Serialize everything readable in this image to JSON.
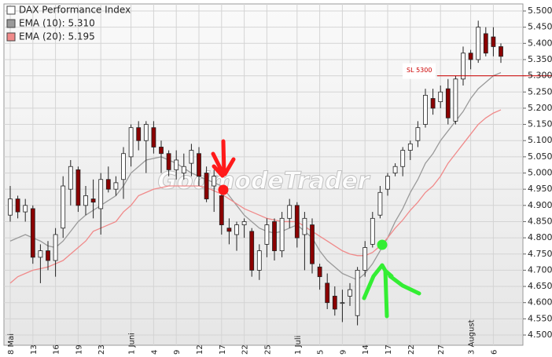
{
  "chart_data": {
    "type": "candlestick",
    "watermark": "GodmodeTrader",
    "categories": [
      "8 Mai",
      null,
      null,
      "13",
      null,
      null,
      "16",
      null,
      null,
      "19",
      null,
      null,
      "23",
      null,
      null,
      null,
      "1 Juni",
      null,
      null,
      "4",
      null,
      null,
      "9",
      null,
      null,
      "12",
      null,
      null,
      "17",
      null,
      null,
      "22",
      null,
      null,
      "25",
      null,
      null,
      null,
      "1 Juli",
      null,
      null,
      "5",
      null,
      null,
      "9",
      null,
      null,
      "14",
      null,
      null,
      "17",
      null,
      null,
      "22",
      null,
      null,
      null,
      "27",
      null,
      null,
      null,
      "3 August",
      null,
      null,
      "6",
      null
    ],
    "up_color": "#ffffff",
    "down_color": "#8b0000",
    "series": [
      {
        "name": "DAX Performance Index",
        "color": "#ffffff",
        "open": [
          4870,
          4920,
          4880,
          4890,
          4740,
          4760,
          4730,
          4830,
          4950,
          5010,
          4900,
          4920,
          4890,
          4980,
          4950,
          4980,
          5050,
          5140,
          5100,
          5140,
          5080,
          5060,
          5010,
          5000,
          5030,
          5060,
          5000,
          4960,
          4930,
          4830,
          4810,
          4840,
          4820,
          4700,
          4780,
          4850,
          4760,
          4860,
          4900,
          4810,
          4840,
          4710,
          4660,
          4620,
          4600,
          4620,
          4560,
          4700,
          4780,
          4870,
          4950,
          5000,
          5020,
          5070,
          5100,
          5150,
          5230,
          5220,
          5260,
          5160,
          5290,
          5370,
          5350,
          5430,
          5420,
          5390
        ],
        "high": [
          4960,
          4930,
          4920,
          4900,
          4780,
          4790,
          4830,
          4990,
          5040,
          5020,
          4960,
          4980,
          5000,
          5020,
          4990,
          5080,
          5150,
          5160,
          5160,
          5160,
          5100,
          5070,
          5070,
          5060,
          5090,
          5080,
          5020,
          5010,
          4960,
          4860,
          4850,
          4860,
          4830,
          4780,
          4860,
          4860,
          4880,
          4920,
          4910,
          4880,
          4860,
          4720,
          4690,
          4650,
          4640,
          4660,
          4710,
          4790,
          4880,
          4960,
          5000,
          5030,
          5080,
          5100,
          5160,
          5260,
          5260,
          5270,
          5290,
          5300,
          5390,
          5380,
          5470,
          5450,
          5450,
          5400
        ],
        "low": [
          4850,
          4860,
          4850,
          4720,
          4660,
          4700,
          4680,
          4800,
          4900,
          4880,
          4870,
          4860,
          4810,
          4940,
          4930,
          4920,
          5020,
          5070,
          5000,
          5060,
          5000,
          4990,
          4980,
          4980,
          4990,
          4960,
          4910,
          4880,
          4810,
          4780,
          4760,
          4800,
          4680,
          4670,
          4740,
          4730,
          4740,
          4830,
          4770,
          4700,
          4690,
          4640,
          4580,
          4560,
          4540,
          4590,
          4530,
          4680,
          4770,
          4860,
          4930,
          4990,
          4990,
          5040,
          5080,
          5140,
          5180,
          5200,
          5150,
          5150,
          5270,
          5320,
          5340,
          5360,
          5360,
          5340
        ],
        "close": [
          4920,
          4880,
          4900,
          4740,
          4760,
          4730,
          4810,
          4960,
          5020,
          4900,
          4930,
          4910,
          4980,
          4950,
          4970,
          5060,
          5140,
          5100,
          5150,
          5080,
          5060,
          5010,
          5040,
          5020,
          5070,
          4990,
          4920,
          4990,
          4840,
          4820,
          4840,
          4850,
          4700,
          4760,
          4840,
          4760,
          4860,
          4900,
          4800,
          4860,
          4720,
          4680,
          4600,
          4580,
          4600,
          4640,
          4700,
          4770,
          4860,
          4940,
          4990,
          5020,
          5070,
          5090,
          5140,
          5240,
          5200,
          5250,
          5170,
          5290,
          5370,
          5350,
          5450,
          5370,
          5390,
          5360
        ]
      },
      {
        "name": "EMA (10): 5.310",
        "color": "#9a9a9a",
        "values": [
          4790,
          4800,
          4810,
          4800,
          4790,
          4775,
          4770,
          4790,
          4820,
          4850,
          4870,
          4885,
          4900,
          4915,
          4930,
          4960,
          5000,
          5020,
          5040,
          5045,
          5050,
          5040,
          5030,
          5015,
          5000,
          4990,
          4980,
          4970,
          4960,
          4930,
          4900,
          4870,
          4850,
          4830,
          4820,
          4815,
          4820,
          4830,
          4840,
          4820,
          4800,
          4760,
          4730,
          4710,
          4690,
          4680,
          4670,
          4690,
          4720,
          4760,
          4800,
          4850,
          4890,
          4940,
          4980,
          5030,
          5060,
          5100,
          5130,
          5160,
          5190,
          5230,
          5260,
          5280,
          5300,
          5310
        ]
      },
      {
        "name": "EMA (20): 5.195",
        "color": "#f08a8a",
        "values": [
          4660,
          4680,
          4690,
          4700,
          4705,
          4710,
          4720,
          4730,
          4750,
          4770,
          4790,
          4820,
          4830,
          4840,
          4850,
          4880,
          4900,
          4930,
          4940,
          4950,
          4955,
          4960,
          4960,
          4960,
          4960,
          4960,
          4955,
          4945,
          4935,
          4920,
          4905,
          4890,
          4880,
          4870,
          4860,
          4855,
          4850,
          4850,
          4850,
          4835,
          4820,
          4805,
          4790,
          4775,
          4760,
          4750,
          4745,
          4745,
          4755,
          4775,
          4800,
          4830,
          4855,
          4885,
          4910,
          4940,
          4960,
          4990,
          5030,
          5060,
          5090,
          5120,
          5150,
          5170,
          5185,
          5195
        ]
      }
    ],
    "annotation": {
      "text": "SL 5300",
      "value": 5300,
      "color": "#cc0000"
    },
    "ylim": [
      4500,
      5500
    ],
    "yticks": [
      {
        "value": 4500,
        "label": "4.500"
      },
      {
        "value": 4550,
        "label": "4.550"
      },
      {
        "value": 4600,
        "label": "4.600"
      },
      {
        "value": 4650,
        "label": "4.650"
      },
      {
        "value": 4700,
        "label": "4.700"
      },
      {
        "value": 4750,
        "label": "4.750"
      },
      {
        "value": 4800,
        "label": "4.800"
      },
      {
        "value": 4850,
        "label": "4.850"
      },
      {
        "value": 4900,
        "label": "4.900"
      },
      {
        "value": 4950,
        "label": "4.950"
      },
      {
        "value": 5000,
        "label": "5.000"
      },
      {
        "value": 5050,
        "label": "5.050"
      },
      {
        "value": 5100,
        "label": "5.100"
      },
      {
        "value": 5150,
        "label": "5.150"
      },
      {
        "value": 5200,
        "label": "5.200"
      },
      {
        "value": 5250,
        "label": "5.250"
      },
      {
        "value": 5300,
        "label": "5.300"
      },
      {
        "value": 5350,
        "label": "5.350"
      },
      {
        "value": 5400,
        "label": "5.400"
      },
      {
        "value": 5450,
        "label": "5.450"
      },
      {
        "value": 5500,
        "label": "5.500"
      }
    ],
    "grid": true
  }
}
